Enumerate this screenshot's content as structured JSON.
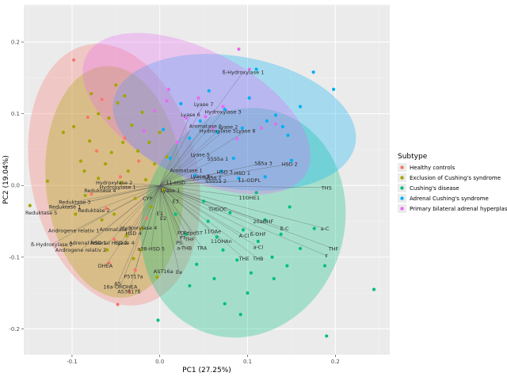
{
  "chart_data": {
    "type": "scatter",
    "subtype": "pca-biplot",
    "xlabel": "PC1 (27.25%)",
    "ylabel": "PC2 (19.04%)",
    "xlim": [
      -0.155,
      0.262
    ],
    "ylim": [
      -0.236,
      0.252
    ],
    "x_ticks": [
      -0.1,
      0.0,
      0.1,
      0.2
    ],
    "x_tick_labels": [
      "-0.1",
      "0.0",
      "0.1",
      "0.2"
    ],
    "y_ticks": [
      -0.2,
      -0.1,
      0.0,
      0.1,
      0.2
    ],
    "y_tick_labels": [
      "-0.2",
      "-0.1",
      "0.0",
      "0.1",
      "0.2"
    ],
    "grid": true,
    "legend_position": "right",
    "legend_title": "Subtype",
    "groups": [
      {
        "name": "Healthy controls",
        "color": "#F8766D",
        "ellipse": {
          "cx": -0.052,
          "cy": 0.015,
          "rx": 0.095,
          "ry": 0.185,
          "angle": -12
        },
        "points": [
          [
            -0.098,
            0.175
          ],
          [
            -0.072,
            0.048
          ],
          [
            -0.061,
            -0.032
          ],
          [
            -0.052,
            -0.075
          ],
          [
            -0.045,
            0.012
          ],
          [
            -0.035,
            -0.148
          ],
          [
            -0.028,
            -0.118
          ],
          [
            -0.082,
            0.095
          ],
          [
            -0.066,
            0.12
          ],
          [
            -0.04,
            0.066
          ],
          [
            -0.015,
            -0.046
          ],
          [
            -0.058,
            -0.108
          ],
          [
            -0.024,
            0.034
          ],
          [
            -0.078,
            -0.012
          ],
          [
            -0.048,
            -0.166
          ]
        ]
      },
      {
        "name": "Exclusion of Cushing's syndrome",
        "color": "#A3A500",
        "ellipse": {
          "cx": -0.052,
          "cy": 0.005,
          "rx": 0.078,
          "ry": 0.162,
          "angle": -5
        },
        "points": [
          [
            -0.148,
            -0.028
          ],
          [
            -0.128,
            0.006
          ],
          [
            -0.11,
            0.074
          ],
          [
            -0.098,
            0.082
          ],
          [
            -0.09,
            0.034
          ],
          [
            -0.085,
            -0.014
          ],
          [
            -0.08,
            0.062
          ],
          [
            -0.078,
            0.128
          ],
          [
            -0.07,
            0.01
          ],
          [
            -0.066,
            -0.048
          ],
          [
            -0.062,
            0.03
          ],
          [
            -0.058,
            0.094
          ],
          [
            -0.055,
            0.046
          ],
          [
            -0.052,
            -0.04
          ],
          [
            -0.048,
            0.115
          ],
          [
            -0.044,
            0.004
          ],
          [
            -0.042,
            0.06
          ],
          [
            -0.038,
            -0.07
          ],
          [
            -0.036,
            0.02
          ],
          [
            -0.032,
            0.084
          ],
          [
            -0.028,
            -0.018
          ],
          [
            -0.025,
            0.048
          ],
          [
            -0.022,
            -0.09
          ],
          [
            -0.02,
            0.102
          ],
          [
            -0.016,
            0.008
          ],
          [
            -0.012,
            0.06
          ],
          [
            -0.01,
            -0.03
          ],
          [
            -0.006,
            0.03
          ],
          [
            -0.003,
            -0.128
          ],
          [
            0.0,
            0.074
          ],
          [
            0.004,
            -0.006
          ],
          [
            0.008,
            0.04
          ],
          [
            -0.06,
            -0.09
          ],
          [
            -0.03,
            -0.102
          ],
          [
            -0.086,
            0.02
          ],
          [
            -0.07,
            0.1
          ],
          [
            -0.096,
            -0.04
          ],
          [
            -0.04,
            0.125
          ],
          [
            -0.05,
            0.14
          ],
          [
            -0.02,
            -0.06
          ]
        ]
      },
      {
        "name": "Cushing's disease",
        "color": "#00BF7D",
        "ellipse": {
          "cx": 0.095,
          "cy": -0.052,
          "rx": 0.115,
          "ry": 0.162,
          "angle": 18
        },
        "points": [
          [
            0.018,
            -0.04
          ],
          [
            0.03,
            -0.068
          ],
          [
            0.042,
            -0.11
          ],
          [
            0.055,
            -0.05
          ],
          [
            0.062,
            -0.13
          ],
          [
            0.072,
            -0.09
          ],
          [
            0.08,
            -0.038
          ],
          [
            0.088,
            -0.104
          ],
          [
            0.095,
            -0.062
          ],
          [
            0.104,
            -0.122
          ],
          [
            0.112,
            -0.078
          ],
          [
            0.12,
            -0.048
          ],
          [
            0.128,
            -0.1
          ],
          [
            0.138,
            -0.068
          ],
          [
            0.148,
            -0.03
          ],
          [
            0.16,
            -0.088
          ],
          [
            0.176,
            -0.06
          ],
          [
            0.188,
            -0.112
          ],
          [
            0.244,
            -0.145
          ],
          [
            0.19,
            -0.21
          ],
          [
            0.074,
            -0.165
          ],
          [
            0.092,
            -0.18
          ],
          [
            -0.002,
            -0.188
          ],
          [
            0.05,
            -0.022
          ],
          [
            0.11,
            -0.01
          ],
          [
            0.13,
            -0.13
          ],
          [
            0.065,
            -0.072
          ],
          [
            0.145,
            -0.112
          ],
          [
            0.1,
            -0.15
          ],
          [
            0.034,
            -0.14
          ]
        ]
      },
      {
        "name": "Adrenal Cushing's syndrome",
        "color": "#00B0F6",
        "ellipse": {
          "cx": 0.085,
          "cy": 0.088,
          "rx": 0.14,
          "ry": 0.092,
          "angle": 10
        },
        "points": [
          [
            0.198,
            0.134
          ],
          [
            0.175,
            0.158
          ],
          [
            0.16,
            0.11
          ],
          [
            0.146,
            0.07
          ],
          [
            0.132,
            0.098
          ],
          [
            0.122,
            0.09
          ],
          [
            0.11,
            0.162
          ],
          [
            0.102,
            0.122
          ],
          [
            0.094,
            0.08
          ],
          [
            0.084,
            0.038
          ],
          [
            0.074,
            0.106
          ],
          [
            0.066,
            0.074
          ],
          [
            0.056,
            0.132
          ],
          [
            0.046,
            0.09
          ],
          [
            0.034,
            0.066
          ],
          [
            0.024,
            0.114
          ],
          [
            0.012,
            0.038
          ],
          [
            0.004,
            0.078
          ],
          [
            0.09,
            0.01
          ],
          [
            0.07,
            0.02
          ],
          [
            0.15,
            0.035
          ],
          [
            0.12,
            0.012
          ],
          [
            0.04,
            0.014
          ],
          [
            0.14,
            0.082
          ]
        ]
      },
      {
        "name": "Primary bilateral adrenal hyperplasia",
        "color": "#E76BF3",
        "ellipse": {
          "cx": 0.042,
          "cy": 0.1,
          "rx": 0.142,
          "ry": 0.088,
          "angle": 28
        },
        "points": [
          [
            0.102,
            0.162
          ],
          [
            0.09,
            0.19
          ],
          [
            0.072,
            0.11
          ],
          [
            0.06,
            0.08
          ],
          [
            0.044,
            0.122
          ],
          [
            0.03,
            0.094
          ],
          [
            0.02,
            0.06
          ],
          [
            0.008,
            0.118
          ],
          [
            -0.006,
            0.104
          ],
          [
            0.132,
            0.086
          ],
          [
            0.116,
            0.08
          ],
          [
            0.088,
            0.065
          ],
          [
            0.01,
            0.134
          ],
          [
            0.052,
            0.096
          ],
          [
            -0.018,
            0.076
          ]
        ]
      }
    ],
    "loadings": [
      {
        "label": "ß-Hydroxylase 1",
        "x": 0.095,
        "y": 0.158
      },
      {
        "label": "Lyase 7",
        "x": 0.05,
        "y": 0.113
      },
      {
        "label": "Hydroxylase 3",
        "x": 0.072,
        "y": 0.103
      },
      {
        "label": "Lyase 6",
        "x": 0.035,
        "y": 0.099
      },
      {
        "label": "Aromatase 2",
        "x": 0.052,
        "y": 0.083
      },
      {
        "label": "Lyase 2",
        "x": 0.078,
        "y": 0.082
      },
      {
        "label": "Hydroxylase 5",
        "x": 0.066,
        "y": 0.076
      },
      {
        "label": "Lyase 8",
        "x": 0.098,
        "y": 0.076
      },
      {
        "label": "Hydroxylase 2",
        "x": -0.052,
        "y": 0.004
      },
      {
        "label": "Hydroxylase 1",
        "x": -0.048,
        "y": -0.002
      },
      {
        "label": "Reduktase 4",
        "x": -0.068,
        "y": -0.007
      },
      {
        "label": "Lyase 5",
        "x": 0.046,
        "y": 0.043
      },
      {
        "label": "S5S5a 1",
        "x": 0.066,
        "y": 0.037
      },
      {
        "label": "5ß5a 3",
        "x": 0.118,
        "y": 0.031
      },
      {
        "label": "HSD 2",
        "x": 0.148,
        "y": 0.03
      },
      {
        "label": "Aromatase 1",
        "x": 0.03,
        "y": 0.021
      },
      {
        "label": "HSD 3",
        "x": 0.074,
        "y": 0.019
      },
      {
        "label": "HSD 1",
        "x": 0.094,
        "y": 0.017
      },
      {
        "label": "5ß5a 2",
        "x": 0.06,
        "y": 0.011
      },
      {
        "label": "Lyase 3",
        "x": 0.046,
        "y": 0.013
      },
      {
        "label": "S5S5a 2",
        "x": 0.064,
        "y": 0.006
      },
      {
        "label": "11-ODPL",
        "x": 0.102,
        "y": 0.007
      },
      {
        "label": "11-HSD",
        "x": 0.018,
        "y": 0.004
      },
      {
        "label": "THS",
        "x": 0.19,
        "y": -0.003
      },
      {
        "label": "Lyase 1",
        "x": 0.012,
        "y": -0.007
      },
      {
        "label": "CYP",
        "x": -0.014,
        "y": -0.018
      },
      {
        "label": "E3",
        "x": 0.018,
        "y": -0.022
      },
      {
        "label": "11OHE1",
        "x": 0.102,
        "y": -0.017
      },
      {
        "label": "THDOC",
        "x": 0.066,
        "y": -0.033
      },
      {
        "label": "Reduktase 3",
        "x": -0.097,
        "y": -0.023
      },
      {
        "label": "Reduktase 1",
        "x": -0.108,
        "y": -0.03
      },
      {
        "label": "Reduktase 5",
        "x": -0.135,
        "y": -0.038
      },
      {
        "label": "Reduktase 2",
        "x": -0.075,
        "y": -0.035
      },
      {
        "label": "E1",
        "x": 0.0,
        "y": -0.039
      },
      {
        "label": "E2",
        "x": 0.004,
        "y": -0.046
      },
      {
        "label": "20aDHF",
        "x": 0.118,
        "y": -0.05
      },
      {
        "label": "a-C",
        "x": 0.188,
        "y": -0.06
      },
      {
        "label": "ß-C",
        "x": 0.142,
        "y": -0.06
      },
      {
        "label": "ß-OHF",
        "x": 0.112,
        "y": -0.068
      },
      {
        "label": "11OAe",
        "x": 0.06,
        "y": -0.064
      },
      {
        "label": "A-Cl",
        "x": 0.096,
        "y": -0.07
      },
      {
        "label": "11OHAn",
        "x": 0.07,
        "y": -0.078
      },
      {
        "label": "Androgene relativ 1",
        "x": -0.098,
        "y": -0.063
      },
      {
        "label": "Aromatase 3",
        "x": -0.05,
        "y": -0.061
      },
      {
        "label": "HSD 4",
        "x": -0.03,
        "y": -0.067
      },
      {
        "label": "Hydroxylase 4",
        "x": -0.024,
        "y": -0.059
      },
      {
        "label": "PD",
        "x": 0.024,
        "y": -0.066
      },
      {
        "label": "Pdpd5T",
        "x": 0.038,
        "y": -0.066
      },
      {
        "label": "PT",
        "x": 0.026,
        "y": -0.073
      },
      {
        "label": "THF",
        "x": 0.034,
        "y": -0.075
      },
      {
        "label": "ß-Hydroxylase 2",
        "x": -0.123,
        "y": -0.082
      },
      {
        "label": "Adrenal HSD 1",
        "x": -0.082,
        "y": -0.08
      },
      {
        "label": "Adrenal HSD 2",
        "x": -0.058,
        "y": -0.08
      },
      {
        "label": "Lyase 4",
        "x": -0.04,
        "y": -0.08
      },
      {
        "label": "P5",
        "x": 0.022,
        "y": -0.08
      },
      {
        "label": "a-THB",
        "x": 0.028,
        "y": -0.087
      },
      {
        "label": "TRA",
        "x": 0.048,
        "y": -0.087
      },
      {
        "label": "a-Cl",
        "x": 0.112,
        "y": -0.086
      },
      {
        "label": "THF",
        "x": 0.198,
        "y": -0.088
      },
      {
        "label": "F",
        "x": 0.19,
        "y": -0.098
      },
      {
        "label": "Androgene relativ 2",
        "x": -0.09,
        "y": -0.09
      },
      {
        "label": "a38-HSD 5",
        "x": -0.01,
        "y": -0.088
      },
      {
        "label": "THE",
        "x": 0.096,
        "y": -0.102
      },
      {
        "label": "THB",
        "x": 0.112,
        "y": -0.102
      },
      {
        "label": "DHEA",
        "x": -0.062,
        "y": -0.112
      },
      {
        "label": "P5T17a",
        "x": -0.03,
        "y": -0.127
      },
      {
        "label": "AS",
        "x": -0.048,
        "y": -0.137
      },
      {
        "label": "AST16a",
        "x": 0.004,
        "y": -0.12
      },
      {
        "label": "Ee",
        "x": 0.022,
        "y": -0.121
      },
      {
        "label": "16a-OHDHEA",
        "x": -0.045,
        "y": -0.141
      },
      {
        "label": "AS3ß17ß",
        "x": -0.035,
        "y": -0.148
      }
    ]
  }
}
